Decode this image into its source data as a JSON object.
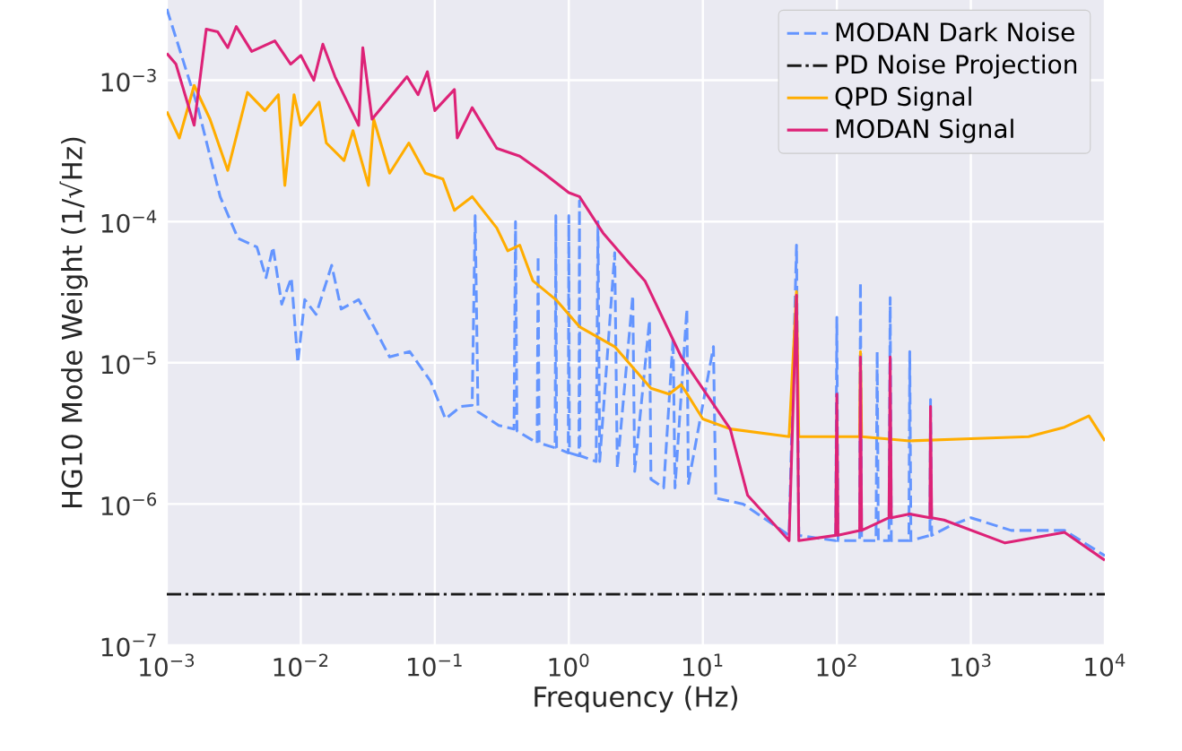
{
  "chart_data": {
    "type": "line",
    "xlabel": "Frequency (Hz)",
    "ylabel": "HG10 Mode Weight (1/√Hz)",
    "log": "xy",
    "grid": true,
    "legend": "top right",
    "xlim": [
      0.001,
      10000
    ],
    "ylim": [
      1e-07,
      0.0037
    ],
    "xticks": [
      {
        "value": 0.001,
        "label": "10$^{−3}$"
      },
      {
        "value": 0.01,
        "label": "10$^{−2}$"
      },
      {
        "value": 0.1,
        "label": "10$^{−1}$"
      },
      {
        "value": 1,
        "label": "10$^{0}$"
      },
      {
        "value": 10,
        "label": "10$^{1}$"
      },
      {
        "value": 100,
        "label": "10$^{2}$"
      },
      {
        "value": 1000,
        "label": "10$^{3}$"
      },
      {
        "value": 10000,
        "label": "10$^{4}$"
      }
    ],
    "yticks": [
      {
        "value": 1e-07,
        "label": "10$^{−7}$"
      },
      {
        "value": 1e-06,
        "label": "10$^{−6}$"
      },
      {
        "value": 1e-05,
        "label": "10$^{−5}$"
      },
      {
        "value": 0.0001,
        "label": "10$^{−4}$"
      },
      {
        "value": 0.001,
        "label": "10$^{−3}$"
      }
    ],
    "series": [
      {
        "name": "MODAN Dark Noise",
        "color": "#6495ff",
        "line_style": "dashed",
        "x": [
          0.001,
          0.0017,
          0.0025,
          0.0034,
          0.0047,
          0.0055,
          0.0062,
          0.0072,
          0.0085,
          0.0095,
          0.0107,
          0.013,
          0.017,
          0.02,
          0.027,
          0.034,
          0.046,
          0.065,
          0.093,
          0.12,
          0.156,
          0.19,
          0.2,
          0.21,
          0.3,
          0.39,
          0.4,
          0.41,
          0.58,
          0.59,
          0.6,
          0.79,
          0.8,
          0.81,
          0.99,
          1.0,
          1.01,
          1.19,
          1.2,
          1.21,
          1.6,
          1.65,
          1.7,
          2.2,
          2.3,
          3,
          3.1,
          4,
          4.1,
          5.1,
          6,
          6.2,
          7.6,
          7.8,
          12,
          12.5,
          20,
          44,
          50,
          52,
          98,
          100,
          102,
          148,
          150,
          153,
          196,
          200,
          204,
          245,
          250,
          255,
          345,
          350,
          357,
          495,
          500,
          510,
          700,
          1000,
          2000,
          3000,
          5000,
          10000
        ],
        "values": [
          0.0032,
          0.00065,
          0.00015,
          7.6e-05,
          6.6e-05,
          4e-05,
          6.6e-05,
          2.6e-05,
          4e-05,
          1e-05,
          2.8e-05,
          2.2e-05,
          4.9e-05,
          2.4e-05,
          2.8e-05,
          1.9e-05,
          1.1e-05,
          1.2e-05,
          7.4e-06,
          4e-06,
          4.9e-06,
          5e-06,
          0.00011,
          4.5e-06,
          3.6e-06,
          3.4e-06,
          0.0001,
          3.3e-06,
          2.7e-06,
          5.7e-05,
          2.7e-06,
          2.5e-06,
          0.00011,
          2.5e-06,
          2.3e-06,
          0.00011,
          2.3e-06,
          2.2e-06,
          0.00014,
          2.2e-06,
          2e-06,
          0.0001,
          2e-06,
          6e-05,
          1.8e-06,
          3e-05,
          1.7e-06,
          2e-05,
          1.5e-06,
          1.3e-06,
          1.5e-05,
          1.3e-06,
          2.4e-05,
          1.4e-06,
          1.3e-05,
          1.1e-06,
          1e-06,
          6e-07,
          6.8e-05,
          6e-07,
          5.5e-07,
          2.1e-05,
          5.5e-07,
          5.5e-07,
          3.7e-05,
          5.5e-07,
          5.5e-07,
          1.2e-05,
          5.5e-07,
          5.5e-07,
          2.9e-05,
          5.5e-07,
          5.5e-07,
          1.2e-05,
          5.5e-07,
          6e-07,
          5.5e-06,
          6e-07,
          7e-07,
          8e-07,
          6.5e-07,
          6.5e-07,
          6.5e-07,
          4.3e-07
        ]
      },
      {
        "name": "PD Noise Projection",
        "color": "#1a1a1a",
        "line_style": "dashdot",
        "x": [
          0.001,
          10000
        ],
        "values": [
          2.3e-07,
          2.3e-07
        ]
      },
      {
        "name": "QPD Signal",
        "color": "#ffad00",
        "line_style": "solid",
        "x": [
          0.001,
          0.00124,
          0.0016,
          0.0021,
          0.00285,
          0.004,
          0.0054,
          0.0068,
          0.0076,
          0.0089,
          0.01,
          0.0137,
          0.0155,
          0.021,
          0.0245,
          0.032,
          0.035,
          0.046,
          0.064,
          0.085,
          0.115,
          0.14,
          0.19,
          0.29,
          0.35,
          0.43,
          0.54,
          0.8,
          1.2,
          2.2,
          4.1,
          5.6,
          6.9,
          10,
          16,
          44,
          50,
          52,
          148,
          150,
          153,
          350,
          1000,
          2700,
          5000,
          7600,
          10000
        ],
        "values": [
          0.0006,
          0.00039,
          0.00092,
          0.00053,
          0.00023,
          0.00082,
          0.00061,
          0.00079,
          0.00018,
          0.00079,
          0.00048,
          0.0007,
          0.00036,
          0.00027,
          0.00044,
          0.00018,
          0.00053,
          0.00022,
          0.00036,
          0.00022,
          0.0002,
          0.00012,
          0.00015,
          9e-05,
          6.2e-05,
          6.8e-05,
          3.8e-05,
          2.8e-05,
          1.8e-05,
          1.3e-05,
          6.6e-06,
          6e-06,
          7e-06,
          4e-06,
          3.4e-06,
          3e-06,
          3.2e-05,
          3e-06,
          3e-06,
          1.2e-05,
          3e-06,
          2.8e-06,
          2.9e-06,
          3e-06,
          3.5e-06,
          4.2e-06,
          2.8e-06
        ]
      },
      {
        "name": "MODAN Signal",
        "color": "#dd2277",
        "line_style": "solid",
        "x": [
          0.001,
          0.00117,
          0.0016,
          0.00197,
          0.0024,
          0.00285,
          0.0033,
          0.0043,
          0.0064,
          0.0084,
          0.01,
          0.0125,
          0.0146,
          0.018,
          0.027,
          0.029,
          0.034,
          0.062,
          0.075,
          0.088,
          0.1,
          0.14,
          0.147,
          0.19,
          0.29,
          0.43,
          0.65,
          1.0,
          1.2,
          1.8,
          2.8,
          3.7,
          6.9,
          16,
          21.6,
          44,
          50,
          52,
          98,
          100,
          102,
          148,
          150,
          153,
          245,
          250,
          255,
          350,
          495,
          500,
          510,
          630,
          1800,
          5000,
          10000
        ],
        "values": [
          0.00155,
          0.0013,
          0.00048,
          0.0023,
          0.0022,
          0.0017,
          0.0024,
          0.0016,
          0.0019,
          0.0013,
          0.0015,
          0.001,
          0.0018,
          0.00106,
          0.00048,
          0.0017,
          0.00053,
          0.00106,
          0.00079,
          0.00115,
          0.00061,
          0.00086,
          0.00039,
          0.00064,
          0.00033,
          0.00029,
          0.00022,
          0.00016,
          0.00015,
          8.3e-05,
          5.1e-05,
          3.8e-05,
          1.1e-05,
          3.4e-06,
          1.15e-06,
          5.5e-07,
          3e-05,
          5.5e-07,
          6e-07,
          6e-06,
          6e-07,
          6.5e-07,
          1.1e-05,
          6.5e-07,
          8e-07,
          1.1e-05,
          8e-07,
          8.5e-07,
          8e-07,
          4.9e-06,
          8e-07,
          7.7e-07,
          5.3e-07,
          6.3e-07,
          4e-07
        ]
      }
    ]
  }
}
